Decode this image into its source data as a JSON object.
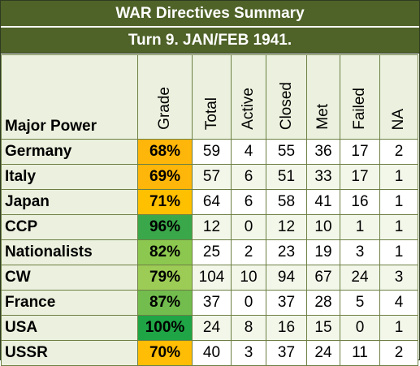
{
  "title": "WAR Directives Summary",
  "subtitle": "Turn 9.  JAN/FEB 1941.",
  "columns": [
    "Major Power",
    "Grade",
    "Total",
    "Active",
    "Closed",
    "Met",
    "Failed",
    "NA"
  ],
  "colors": {
    "banner": "#4f6228",
    "grade_orange": "#ffc000",
    "grade_light_green": "#92d050",
    "grade_green": "#00b050",
    "grade_dark_green": "#3aa04a",
    "grade_mid_green": "#7fc14f"
  },
  "rows": [
    {
      "power": "Germany",
      "grade": "68%",
      "total": "59",
      "active": "4",
      "closed": "55",
      "met": "36",
      "failed": "17",
      "na": "2",
      "grade_color": "#ffb60a"
    },
    {
      "power": "Italy",
      "grade": "69%",
      "total": "57",
      "active": "6",
      "closed": "51",
      "met": "33",
      "failed": "17",
      "na": "1",
      "grade_color": "#ffb60a"
    },
    {
      "power": "Japan",
      "grade": "71%",
      "total": "64",
      "active": "6",
      "closed": "58",
      "met": "41",
      "failed": "16",
      "na": "1",
      "grade_color": "#ffc000"
    },
    {
      "power": "CCP",
      "grade": "96%",
      "total": "12",
      "active": "0",
      "closed": "12",
      "met": "10",
      "failed": "1",
      "na": "1",
      "grade_color": "#3aa84a"
    },
    {
      "power": "Nationalists",
      "grade": "82%",
      "total": "25",
      "active": "2",
      "closed": "23",
      "met": "19",
      "failed": "3",
      "na": "1",
      "grade_color": "#8cc84f"
    },
    {
      "power": "CW",
      "grade": "79%",
      "total": "104",
      "active": "10",
      "closed": "94",
      "met": "67",
      "failed": "24",
      "na": "3",
      "grade_color": "#9ccc55"
    },
    {
      "power": "France",
      "grade": "87%",
      "total": "37",
      "active": "0",
      "closed": "37",
      "met": "28",
      "failed": "5",
      "na": "4",
      "grade_color": "#72bd4e"
    },
    {
      "power": "USA",
      "grade": "100%",
      "total": "24",
      "active": "8",
      "closed": "16",
      "met": "15",
      "failed": "0",
      "na": "1",
      "grade_color": "#1fa545"
    },
    {
      "power": "USSR",
      "grade": "70%",
      "total": "40",
      "active": "3",
      "closed": "37",
      "met": "24",
      "failed": "11",
      "na": "2",
      "grade_color": "#ffbd05"
    }
  ]
}
